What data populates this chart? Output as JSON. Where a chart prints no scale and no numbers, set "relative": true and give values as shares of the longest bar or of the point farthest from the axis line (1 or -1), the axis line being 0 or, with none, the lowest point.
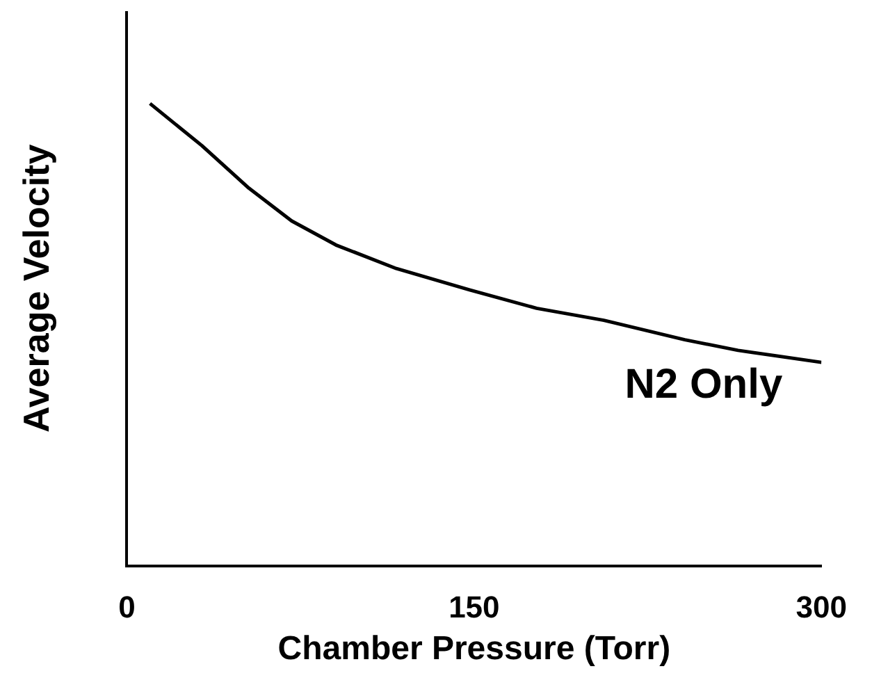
{
  "chart_data": {
    "type": "line",
    "xlabel": "Chamber Pressure (Torr)",
    "ylabel": "Average Velocity",
    "relative": true,
    "xlim": [
      0,
      300
    ],
    "xticks": [
      0,
      150,
      300
    ],
    "legend": false,
    "grid": false,
    "marker": "none",
    "series": [
      {
        "name": "N2 Only",
        "color": "#000000",
        "x": [
          10,
          32.4,
          52.7,
          71.2,
          90.3,
          116.4,
          148,
          177,
          206,
          241,
          264,
          300
        ],
        "values": [
          1,
          0.909,
          0.817,
          0.746,
          0.694,
          0.643,
          0.597,
          0.557,
          0.531,
          0.489,
          0.466,
          0.44
        ]
      }
    ]
  }
}
